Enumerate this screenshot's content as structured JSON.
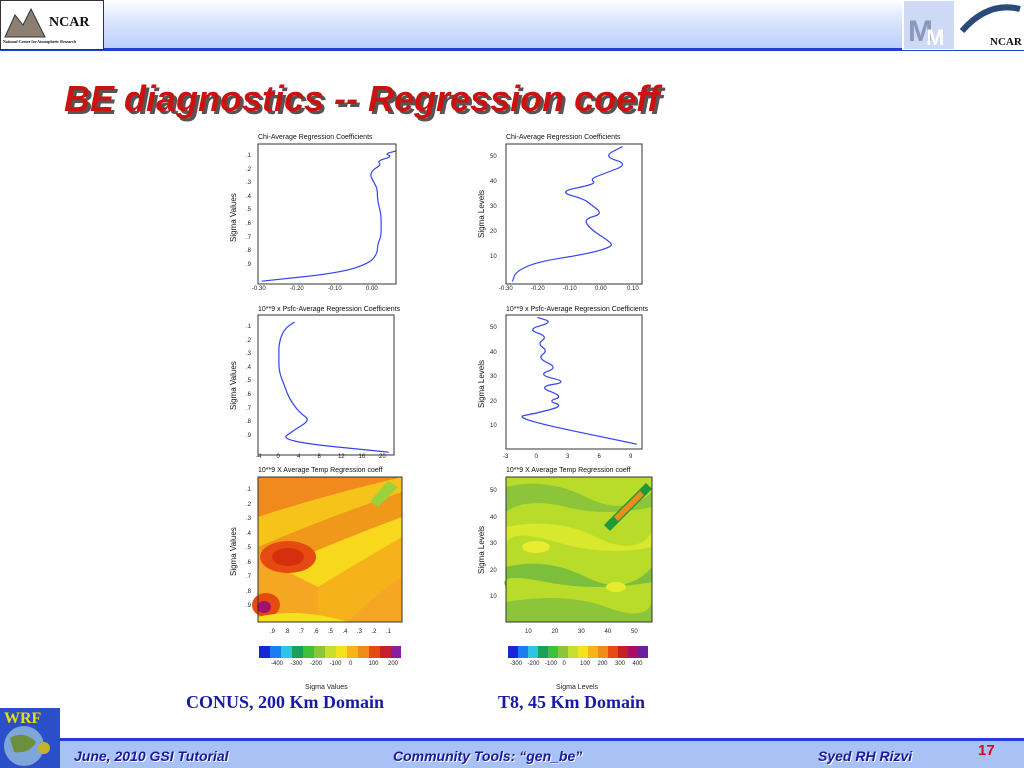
{
  "header": {
    "logo_text": "NCAR",
    "logo_subtext": "National Center for Atmospheric Research",
    "right_logo_text": "NCAR"
  },
  "slide_title": "BE diagnostics -- Regression coeff",
  "colors": {
    "title": "#cc1111",
    "accent": "#1f3fd6",
    "line": "#3344ee"
  },
  "plots": {
    "p1": {
      "title": "Chi-Average Regression Coefficients",
      "ylabel": "Sigma Values",
      "yticks": [
        ".1",
        ".2",
        ".3",
        ".4",
        ".5",
        ".6",
        ".7",
        ".8",
        ".9"
      ],
      "xticks": [
        "-0.30",
        "-0.20",
        "-0.10",
        "0.00"
      ]
    },
    "p2": {
      "title": "Chi-Average Regression Coefficients",
      "ylabel": "Sigma Levels",
      "yticks": [
        "50",
        "40",
        "30",
        "20",
        "10"
      ],
      "xticks": [
        "-0.30",
        "-0.20",
        "-0.10",
        "0.00",
        "0.10"
      ]
    },
    "p3": {
      "title": "10**9 x Psfc-Average Regression Coefficients",
      "ylabel": "Sigma Values",
      "yticks": [
        ".1",
        ".2",
        ".3",
        ".4",
        ".5",
        ".6",
        ".7",
        ".8",
        ".9"
      ],
      "xticks": [
        "-4",
        "0",
        "4",
        "8",
        "12",
        "16",
        "20"
      ]
    },
    "p4": {
      "title": "10**9 x Psfc-Average Regression Coefficients",
      "ylabel": "Sigma Levels",
      "yticks": [
        "50",
        "40",
        "30",
        "20",
        "10"
      ],
      "xticks": [
        "-3",
        "0",
        "3",
        "6",
        "9"
      ]
    },
    "p5": {
      "title": "10**9 X Average Temp Regression coeff",
      "ylabel": "Sigma Values",
      "yticks": [
        ".1",
        ".2",
        ".3",
        ".4",
        ".5",
        ".6",
        ".7",
        ".8",
        ".9"
      ],
      "xticks": [
        ".9",
        ".8",
        ".7",
        ".6",
        ".5",
        ".4",
        ".3",
        ".2",
        ".1"
      ],
      "cbar_ticks": [
        "-400",
        "-300",
        "-200",
        "-100",
        "0",
        "100",
        "200"
      ],
      "xlabel": "Sigma Values"
    },
    "p6": {
      "title": "10**9 X Average Temp Regression coeff",
      "ylabel": "Sigma Levels",
      "yticks": [
        "50",
        "40",
        "30",
        "20",
        "10"
      ],
      "xticks": [
        "10",
        "20",
        "30",
        "40",
        "50"
      ],
      "cbar_ticks": [
        "-300",
        "-200",
        "-100",
        "0",
        "100",
        "200",
        "300",
        "400"
      ],
      "xlabel": "Sigma Levels"
    }
  },
  "captions": {
    "left": "CONUS, 200 Km Domain",
    "right": "T8,  45 Km Domain"
  },
  "footer": {
    "left": "June, 2010 GSI Tutorial",
    "center": "Community Tools: “gen_be”",
    "right": "Syed RH Rizvi",
    "page": "17"
  },
  "wrf_logo_text": "WRF",
  "chart_data": [
    {
      "type": "line",
      "title": "Chi-Average Regression Coefficients",
      "ylabel": "Sigma Values",
      "xlim": [
        -0.32,
        0.05
      ],
      "ylim": [
        0.0,
        1.0
      ],
      "x": [
        0.05,
        0.02,
        0.04,
        0.0,
        0.01,
        -0.01,
        -0.02,
        -0.01,
        0.0,
        0.0,
        0.01,
        0.01,
        0.01,
        0.0,
        0.0,
        -0.02,
        -0.1,
        -0.31
      ],
      "y": [
        0.05,
        0.07,
        0.09,
        0.12,
        0.15,
        0.18,
        0.22,
        0.27,
        0.32,
        0.4,
        0.5,
        0.58,
        0.66,
        0.72,
        0.78,
        0.85,
        0.92,
        0.98
      ]
    },
    {
      "type": "line",
      "title": "Chi-Average Regression Coefficients",
      "ylabel": "Sigma Levels",
      "xlim": [
        -0.3,
        0.12
      ],
      "ylim": [
        0,
        56
      ],
      "x": [
        0.06,
        0.0,
        0.08,
        0.0,
        -0.04,
        -0.02,
        -0.14,
        -0.06,
        -0.04,
        0.0,
        -0.06,
        -0.04,
        0.02,
        0.03,
        -0.05,
        -0.2,
        -0.27,
        -0.28
      ],
      "y": [
        55,
        51,
        48,
        44,
        42,
        40,
        37,
        34,
        32,
        28,
        26,
        22,
        17,
        15,
        12,
        9,
        5,
        1
      ]
    },
    {
      "type": "line",
      "title": "10**9 x Psfc-Average Regression Coefficients",
      "ylabel": "Sigma Values",
      "xlim": [
        -4,
        22
      ],
      "ylim": [
        0.0,
        1.0
      ],
      "x": [
        3,
        1,
        0,
        0,
        0,
        1,
        2,
        4,
        6,
        3,
        0,
        21
      ],
      "y": [
        0.05,
        0.1,
        0.2,
        0.3,
        0.4,
        0.5,
        0.6,
        0.7,
        0.75,
        0.82,
        0.9,
        0.98
      ]
    },
    {
      "type": "line",
      "title": "10**9 x Psfc-Average Regression Coefficients",
      "ylabel": "Sigma Levels",
      "xlim": [
        -3,
        10
      ],
      "ylim": [
        0,
        56
      ],
      "x": [
        0,
        1.5,
        -1,
        1,
        0,
        1,
        0,
        2,
        0,
        3,
        0,
        2.5,
        1,
        2.5,
        0,
        -2.5,
        9.5
      ],
      "y": [
        55,
        53,
        50,
        47,
        44,
        41,
        38,
        34,
        31,
        28,
        26,
        22,
        20,
        18,
        15,
        13,
        2
      ]
    },
    {
      "type": "heatmap",
      "title": "10**9 X Average Temp Regression coeff",
      "ylabel": "Sigma Values",
      "xlabel": "Sigma Values",
      "colorbar": [
        -400,
        -300,
        -200,
        -100,
        0,
        100,
        200
      ]
    },
    {
      "type": "heatmap",
      "title": "10**9 X Average Temp Regression coeff",
      "ylabel": "Sigma Levels",
      "xlabel": "Sigma Levels",
      "colorbar": [
        -300,
        -200,
        -100,
        0,
        100,
        200,
        300,
        400
      ]
    }
  ]
}
